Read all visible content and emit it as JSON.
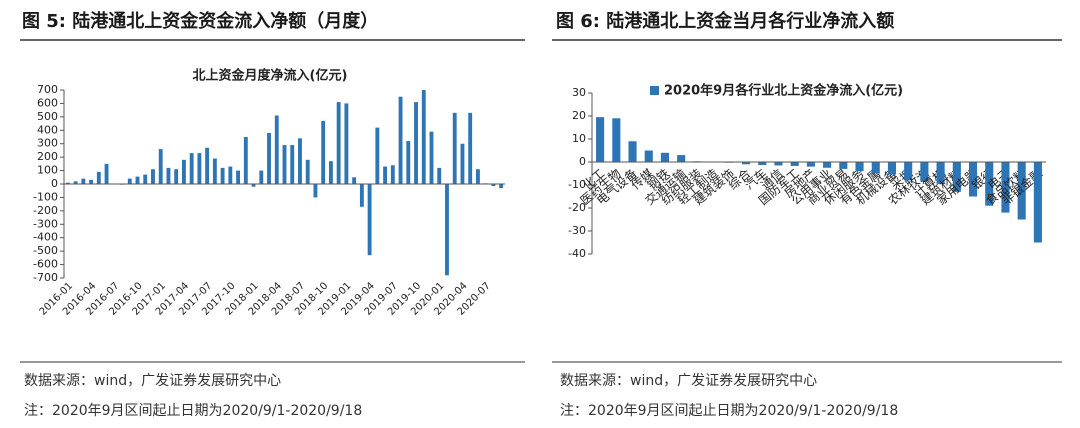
{
  "chart_data": [
    {
      "type": "bar",
      "title": "图 5:  陆港通北上资金资金流入净额（月度）",
      "subtitle": "北上资金月度净流入(亿元)",
      "categories": [
        "2016-01",
        null,
        null,
        "2016-04",
        null,
        null,
        "2016-07",
        null,
        null,
        "2016-10",
        null,
        null,
        "2017-01",
        null,
        null,
        "2017-04",
        null,
        null,
        "2017-07",
        null,
        null,
        "2017-10",
        null,
        null,
        "2018-01",
        null,
        null,
        "2018-04",
        null,
        null,
        "2018-07",
        null,
        null,
        "2018-10",
        null,
        null,
        "2019-01",
        null,
        null,
        "2019-04",
        null,
        null,
        "2019-07",
        null,
        null,
        "2019-10",
        null,
        null,
        "2020-01",
        null,
        null,
        "2020-04",
        null,
        null,
        "2020-07",
        null,
        null
      ],
      "values": [
        10,
        20,
        40,
        30,
        90,
        150,
        0,
        -5,
        40,
        55,
        70,
        110,
        260,
        120,
        110,
        180,
        230,
        230,
        270,
        190,
        120,
        130,
        100,
        350,
        -20,
        100,
        380,
        510,
        290,
        290,
        340,
        180,
        -100,
        470,
        170,
        610,
        600,
        50,
        -170,
        -530,
        420,
        130,
        140,
        650,
        320,
        610,
        700,
        390,
        120,
        -680,
        530,
        300,
        530,
        110,
        5,
        -15,
        -30
      ],
      "color": "#2e75b6",
      "ylim": [
        -700,
        700
      ],
      "yticks": [
        -700,
        -600,
        -500,
        -400,
        -300,
        -200,
        -100,
        0,
        100,
        200,
        300,
        400,
        500,
        600,
        700
      ],
      "source": "数据来源：wind，广发证券发展研究中心",
      "note": "注：2020年9月区间起止日期为2020/9/1-2020/9/18"
    },
    {
      "type": "bar",
      "title": "图 6:  陆港通北上资金当月各行业净流入额",
      "categories": [
        "化工",
        "医药生物",
        "电气设备",
        "传媒",
        "钢铁",
        "交通运输",
        "纺织服装",
        "轻工制造",
        "建筑装饰",
        "综合",
        "汽车",
        "通信",
        "国防军工",
        "房地产",
        "公用事业",
        "商业贸易",
        "休闲服务",
        "有色金属",
        "机械设备",
        "采掘",
        "农林牧渔",
        "计算机",
        "建筑材料",
        "家用电器",
        "银行",
        "电子",
        "食品饮料",
        "非银金融"
      ],
      "series": [
        {
          "name": "2020年9月各行业北上资金净流入(亿元)",
          "color": "#2e75b6",
          "values": [
            19.5,
            19,
            9,
            5,
            4,
            3,
            0.3,
            0.2,
            -0.3,
            -1,
            -1.3,
            -1.5,
            -1.7,
            -2,
            -2.5,
            -3,
            -4,
            -5,
            -5.5,
            -8,
            -8.5,
            -9.5,
            -13,
            -15,
            -19,
            -22,
            -25,
            -35
          ]
        }
      ],
      "ylim": [
        -40,
        30
      ],
      "yticks": [
        -40,
        -30,
        -20,
        -10,
        0,
        10,
        20,
        30
      ],
      "source": "数据来源：wind，广发证券发展研究中心",
      "note": "注：2020年9月区间起止日期为2020/9/1-2020/9/18"
    }
  ]
}
